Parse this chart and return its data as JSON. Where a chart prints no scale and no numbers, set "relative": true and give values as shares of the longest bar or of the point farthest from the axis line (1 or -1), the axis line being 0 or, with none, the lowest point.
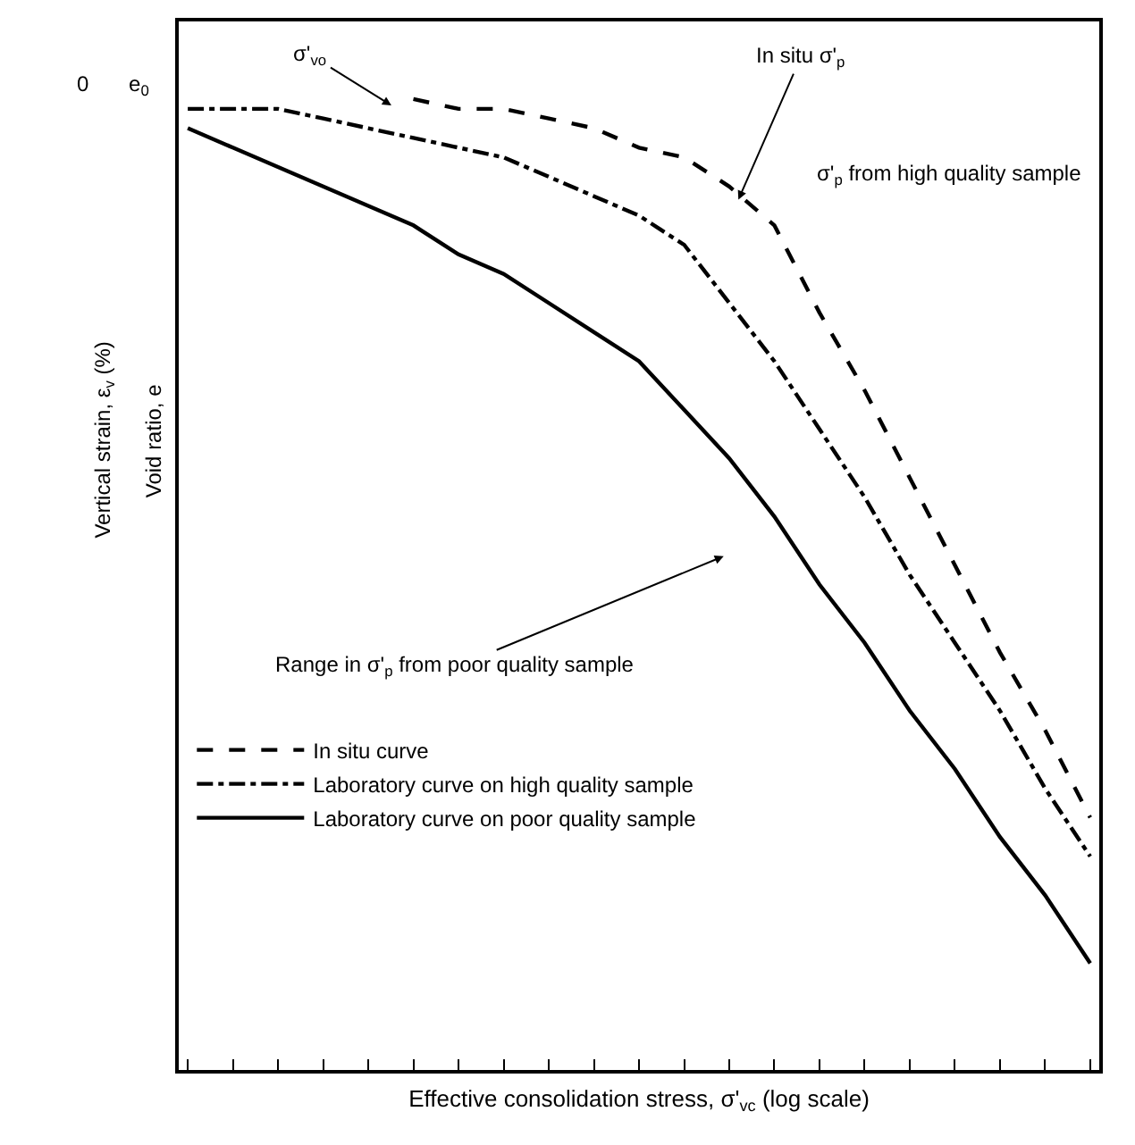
{
  "chart_data": {
    "type": "line",
    "relative": true,
    "xlabel": "Effective consolidation stress, σ'$_{vc}$ (log scale)",
    "ylabel": "Vertical strain, ε$_{v}$ (%)",
    "categories": [
      null,
      null,
      null,
      null,
      null,
      null,
      null,
      null,
      null,
      null,
      null,
      null,
      null,
      null,
      null,
      null,
      null,
      null,
      null,
      null,
      null
    ],
    "series": [
      {
        "name": "In situ curve",
        "color": "#000000",
        "line_style": "dashed",
        "values": [
          null,
          null,
          null,
          null,
          null,
          1.0,
          0.99,
          0.99,
          0.98,
          0.97,
          0.95,
          0.94,
          0.91,
          0.87,
          0.78,
          0.7,
          0.61,
          0.52,
          0.43,
          0.35,
          0.26
        ]
      },
      {
        "name": "Laboratory curve on high quality sample",
        "color": "#000000",
        "line_style": "dash-dot",
        "values": [
          0.99,
          0.99,
          0.99,
          0.98,
          0.97,
          0.96,
          0.95,
          0.94,
          0.92,
          0.9,
          0.88,
          0.85,
          0.79,
          0.73,
          0.66,
          0.59,
          0.51,
          0.44,
          0.37,
          0.29,
          0.22
        ]
      },
      {
        "name": "Laboratory curve on poor quality sample",
        "color": "#000000",
        "line_style": "solid",
        "values": [
          0.97,
          0.95,
          0.93,
          0.91,
          0.89,
          0.87,
          0.84,
          0.82,
          0.79,
          0.76,
          0.73,
          0.68,
          0.63,
          0.57,
          0.5,
          0.44,
          0.37,
          0.31,
          0.24,
          0.18,
          0.11
        ]
      }
    ],
    "annotations": [
      "0",
      "e$_{0}$",
      "σ'$_{vo}$",
      "In situ σ'$_{p}$",
      "σ'$_{p}$ from high quality sample",
      "Range in σ'$_{p}$ from poor quality sample",
      "Void ratio, e"
    ],
    "legend": "bottom left",
    "grid": false,
    "marker": "none"
  }
}
